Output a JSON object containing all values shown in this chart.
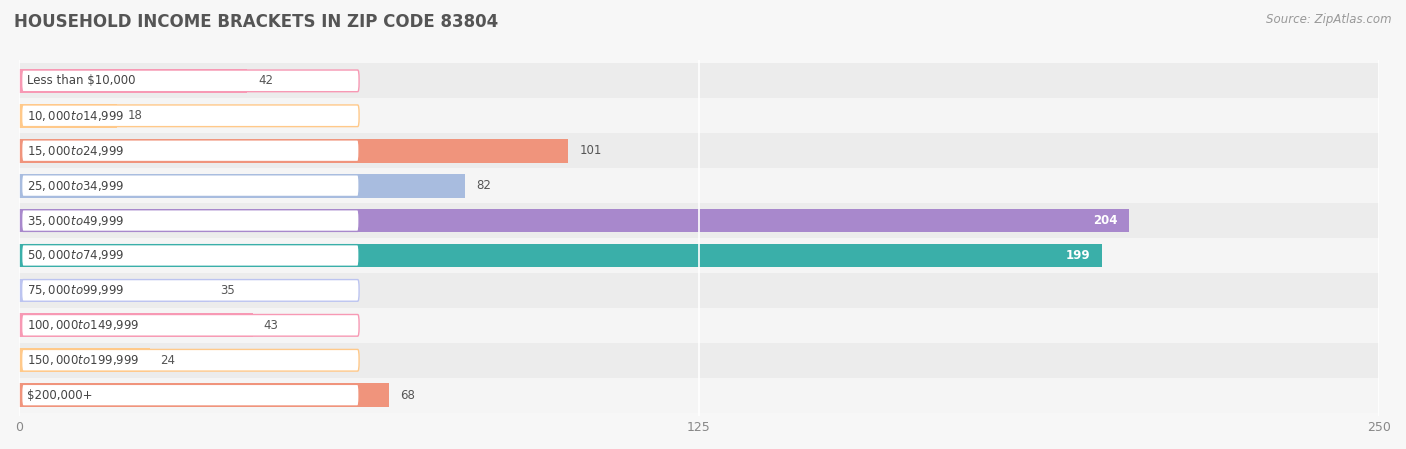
{
  "title": "HOUSEHOLD INCOME BRACKETS IN ZIP CODE 83804",
  "source": "Source: ZipAtlas.com",
  "categories": [
    "Less than $10,000",
    "$10,000 to $14,999",
    "$15,000 to $24,999",
    "$25,000 to $34,999",
    "$35,000 to $49,999",
    "$50,000 to $74,999",
    "$75,000 to $99,999",
    "$100,000 to $149,999",
    "$150,000 to $199,999",
    "$200,000+"
  ],
  "values": [
    42,
    18,
    101,
    82,
    204,
    199,
    35,
    43,
    24,
    68
  ],
  "bar_colors": [
    "#f799b4",
    "#ffc98a",
    "#f0947c",
    "#a8bcdf",
    "#a888cc",
    "#3aafa9",
    "#bcc4f0",
    "#f799b4",
    "#ffc98a",
    "#f0947c"
  ],
  "row_bg_colors": [
    "#f0f0f0",
    "#fafafa"
  ],
  "xlim": [
    0,
    250
  ],
  "xticks": [
    0,
    125,
    250
  ],
  "background_color": "#f7f7f7",
  "bar_row_bg": "#ebebeb",
  "title_fontsize": 12,
  "source_fontsize": 8.5,
  "label_fontsize": 8.5,
  "value_fontsize": 8.5,
  "bar_height": 0.68
}
